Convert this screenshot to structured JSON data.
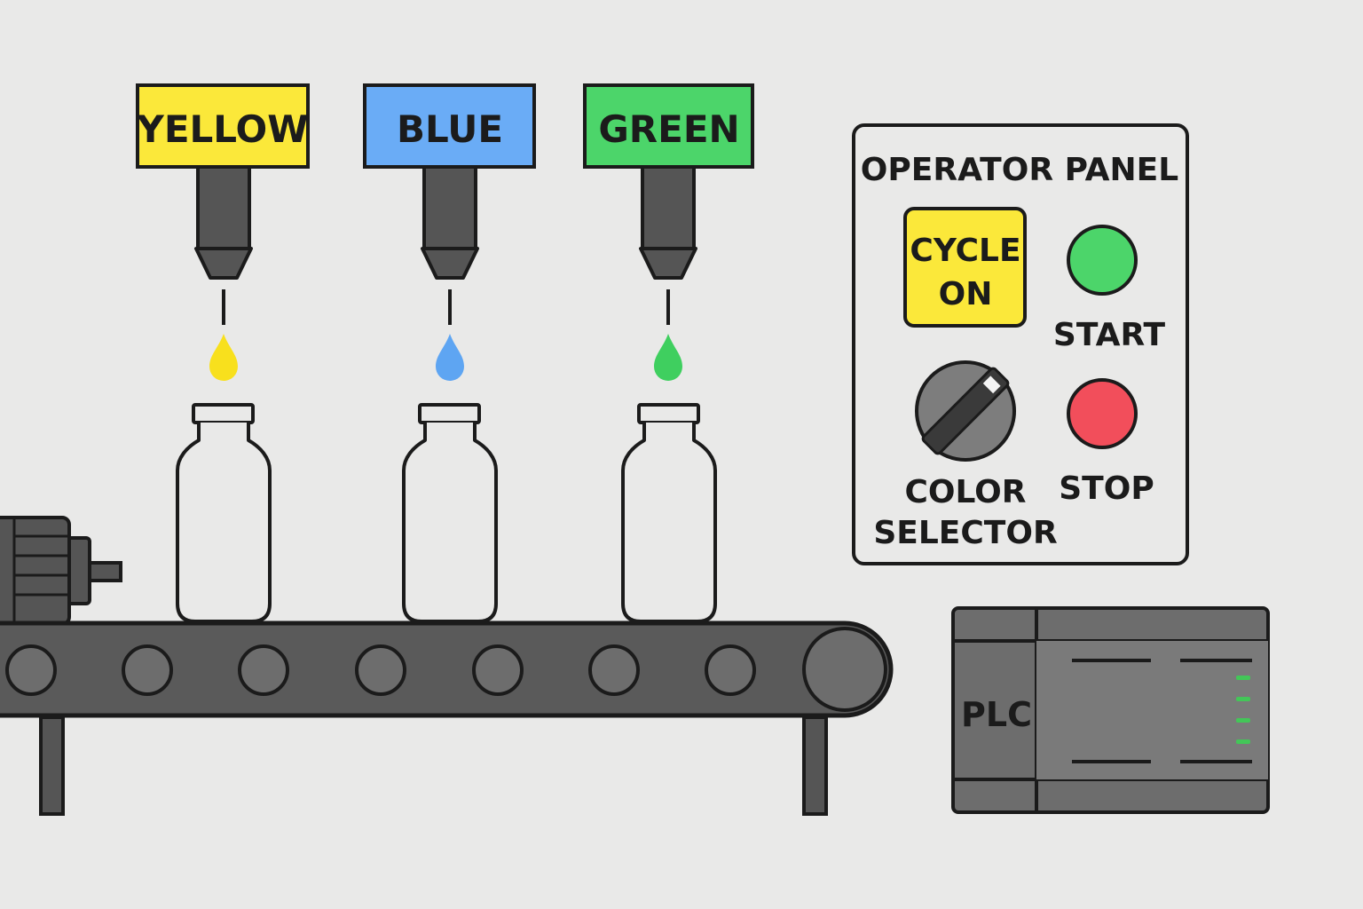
{
  "colors": {
    "background": "#e9e9e8",
    "outline": "#1b1b1b",
    "yellow": "#fbe83a",
    "blue": "#6aacf6",
    "green": "#4cd56a",
    "red": "#f24e5b",
    "dark_gray": "#505050",
    "mid_gray": "#6d6d6d",
    "bottle_fill": "#e9e9e8",
    "led_green": "#43c658"
  },
  "dispensers": [
    {
      "label": "YELLOW",
      "color": "#fbe83a",
      "drop_color": "#f8e01d"
    },
    {
      "label": "BLUE",
      "color": "#6aacf6",
      "drop_color": "#5ea5f2"
    },
    {
      "label": "GREEN",
      "color": "#4cd56a",
      "drop_color": "#3fcf5f"
    }
  ],
  "operator_panel": {
    "title": "OPERATOR PANEL",
    "cycle_on_line1": "CYCLE",
    "cycle_on_line2": "ON",
    "start_label": "START",
    "stop_label": "STOP",
    "selector_line1": "COLOR",
    "selector_line2": "SELECTOR"
  },
  "plc": {
    "label": "PLC"
  }
}
